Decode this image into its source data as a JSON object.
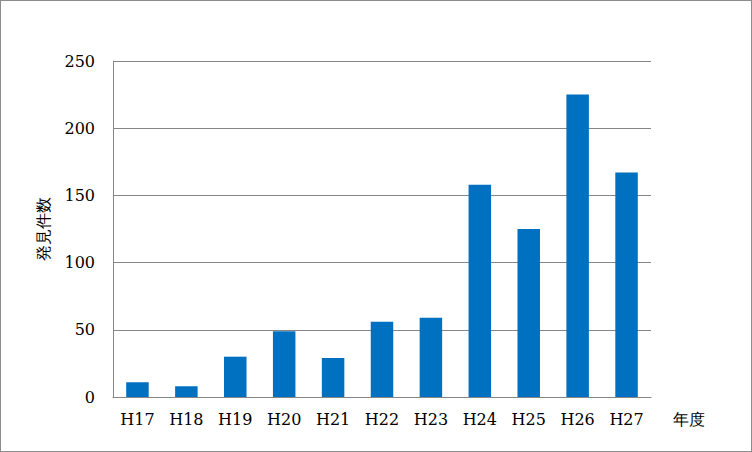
{
  "chart_data": {
    "type": "bar",
    "x_label": "年度",
    "y_label": "発見件数",
    "categories": [
      "H17",
      "H18",
      "H19",
      "H20",
      "H21",
      "H22",
      "H23",
      "H24",
      "H25",
      "H26",
      "H27"
    ],
    "values": [
      11,
      8,
      30,
      49,
      29,
      56,
      59,
      158,
      125,
      225,
      167
    ],
    "color": "#0070c0",
    "ylim": [
      0,
      250
    ],
    "yticks": [
      0,
      50,
      100,
      150,
      200,
      250
    ],
    "grid": true
  }
}
